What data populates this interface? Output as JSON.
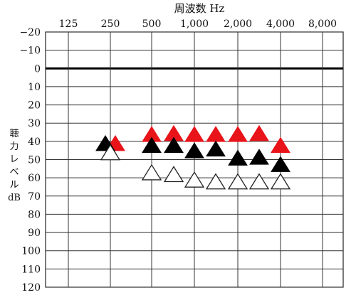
{
  "chart_data": {
    "type": "scatter",
    "title": "周波数 Hz",
    "ylabel_chars": [
      "聴",
      "力",
      "レ",
      "ベ",
      "ル"
    ],
    "ylabel_unit": "dB",
    "x_ticks": [
      "125",
      "250",
      "500",
      "1,000",
      "2,000",
      "4,000",
      "8,000"
    ],
    "x_minor": [
      "750",
      "1,500",
      "3,000"
    ],
    "y_ticks": [
      -20,
      -10,
      0,
      10,
      20,
      30,
      40,
      50,
      60,
      70,
      80,
      90,
      100,
      110,
      120
    ],
    "ylim": [
      -20,
      120
    ],
    "grid": true,
    "marker": "triangle",
    "series": [
      {
        "color": "#e8141a",
        "filled": true,
        "points": [
          {
            "x": "250",
            "y": 41
          },
          {
            "x": "500",
            "y": 36
          },
          {
            "x": "750",
            "y": 35.5
          },
          {
            "x": "1,000",
            "y": 36
          },
          {
            "x": "1,500",
            "y": 36
          },
          {
            "x": "2,000",
            "y": 36
          },
          {
            "x": "3,000",
            "y": 35.5
          },
          {
            "x": "4,000",
            "y": 42
          }
        ]
      },
      {
        "color": "#000000",
        "filled": true,
        "points": [
          {
            "x": "250",
            "y": 41
          },
          {
            "x": "500",
            "y": 42
          },
          {
            "x": "750",
            "y": 42
          },
          {
            "x": "1,000",
            "y": 45
          },
          {
            "x": "1,500",
            "y": 44
          },
          {
            "x": "2,000",
            "y": 49
          },
          {
            "x": "3,000",
            "y": 48.5
          },
          {
            "x": "4,000",
            "y": 52.5
          }
        ]
      },
      {
        "color": "#000000",
        "filled": false,
        "points": [
          {
            "x": "250",
            "y": 46
          },
          {
            "x": "500",
            "y": 57
          },
          {
            "x": "750",
            "y": 58
          },
          {
            "x": "1,000",
            "y": 61
          },
          {
            "x": "1,500",
            "y": 62
          },
          {
            "x": "2,000",
            "y": 62
          },
          {
            "x": "3,000",
            "y": 62
          },
          {
            "x": "4,000",
            "y": 62
          }
        ]
      }
    ]
  }
}
